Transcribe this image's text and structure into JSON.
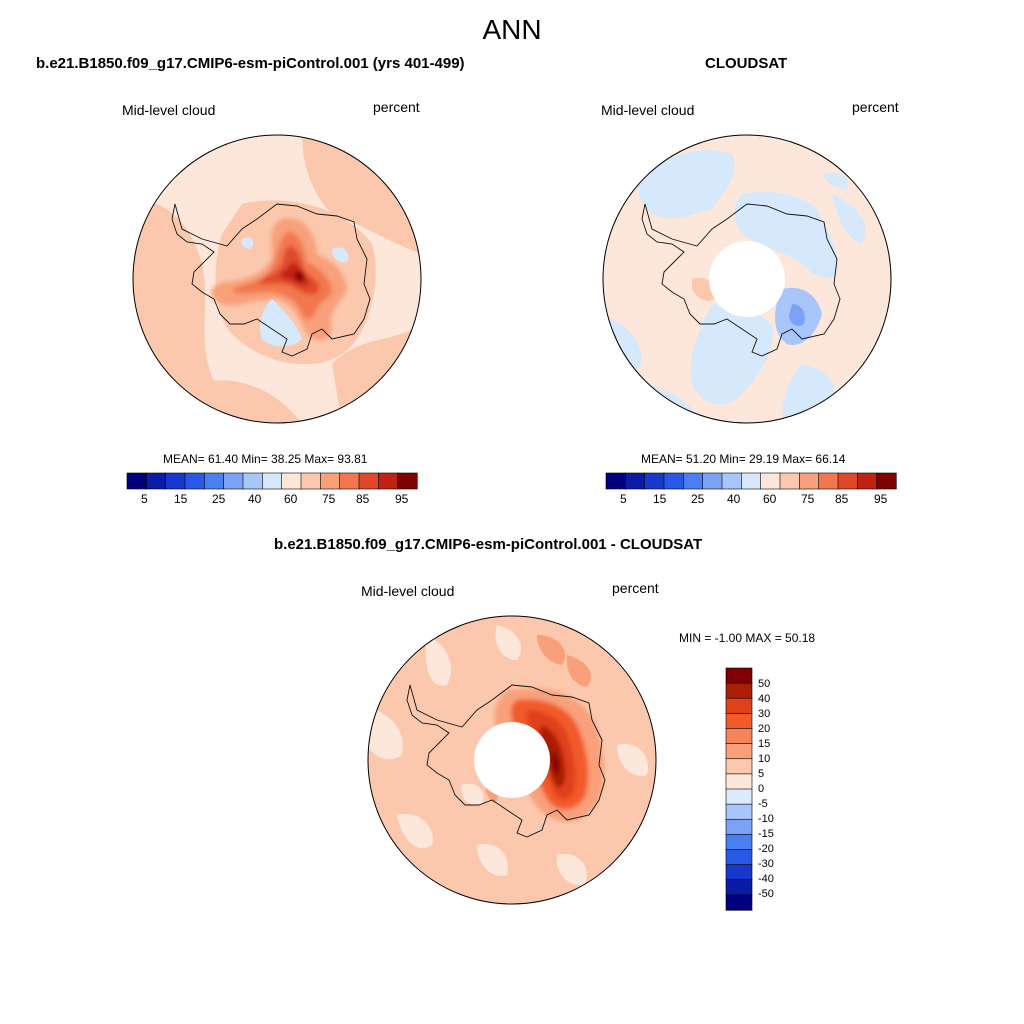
{
  "main_title": "ANN",
  "colors": {
    "abs_scale": [
      "#00007f",
      "#0a1ba8",
      "#1638cc",
      "#2a58e6",
      "#4a7ff2",
      "#7aa3f7",
      "#a9c6fb",
      "#d6e8fc",
      "#fde7da",
      "#fbc8ae",
      "#f8a07a",
      "#f2774e",
      "#e0482a",
      "#c22212",
      "#7f0000"
    ],
    "diff_scale": [
      "#00007f",
      "#0a1ba8",
      "#1638cc",
      "#2a58e6",
      "#4a7ff2",
      "#7aa3f7",
      "#a9c6fb",
      "#dceafb",
      "#fde7da",
      "#fbc8ae",
      "#f8a07a",
      "#f5845a",
      "#f25a2b",
      "#e0401a",
      "#ac1d05",
      "#7f0000"
    ]
  },
  "panels": [
    {
      "title": "b.e21.B1850.f09_g17.CMIP6-esm-piControl.001 (yrs 401-499)",
      "left_label": "Mid-level cloud",
      "right_label": "percent",
      "stats": "MEAN=  61.40  Min=  38.25  Max=  93.81"
    },
    {
      "title": "CLOUDSAT",
      "left_label": "Mid-level cloud",
      "right_label": "percent",
      "stats": "MEAN=  51.20  Min=  29.19  Max=  66.14"
    },
    {
      "title": "b.e21.B1850.f09_g17.CMIP6-esm-piControl.001 - CLOUDSAT",
      "left_label": "Mid-level cloud",
      "right_label": "percent",
      "stats": "MIN =  -1.00 MAX =  50.18"
    }
  ],
  "abs_colorbar_ticks": [
    "5",
    "15",
    "25",
    "40",
    "60",
    "75",
    "85",
    "95"
  ],
  "diff_colorbar_ticks": [
    "50",
    "40",
    "30",
    "20",
    "15",
    "10",
    "5",
    "0",
    "-5",
    "-10",
    "-15",
    "-20",
    "-30",
    "-40",
    "-50"
  ]
}
